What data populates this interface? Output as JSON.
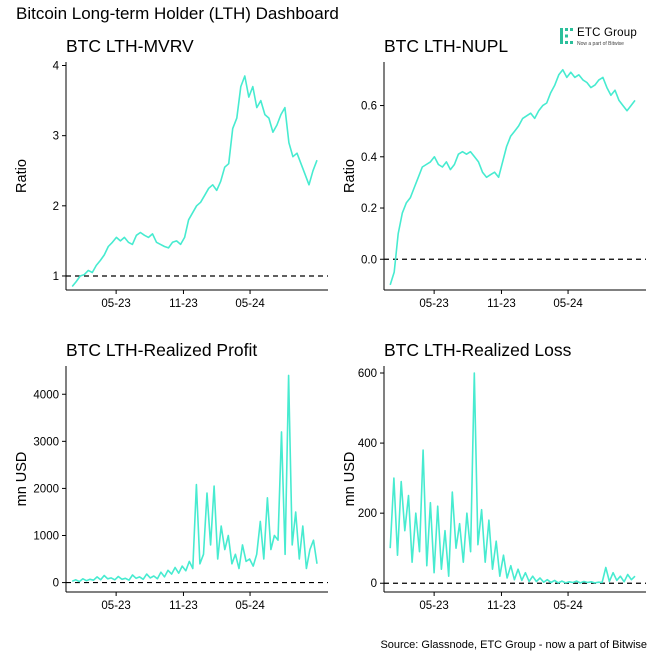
{
  "page": {
    "title": "Bitcoin Long-term Holder (LTH) Dashboard",
    "source": "Source: Glassnode, ETC Group - now a part of Bitwise",
    "logo": {
      "name": "ETC Group",
      "tagline": "Now a part of Bitwise",
      "color": "#2bbf9b"
    }
  },
  "line_color": "#47ebd0",
  "chart_data": [
    {
      "type": "line",
      "title": "BTC LTH-MVRV",
      "xlabel": "",
      "ylabel": "Ratio",
      "xlim": [
        "2022-12-15",
        "2024-11-30"
      ],
      "ylim": [
        0.8,
        4.05
      ],
      "yticks": [
        1,
        2,
        3,
        4
      ],
      "xticks": [
        "05-23",
        "11-23",
        "05-24"
      ],
      "reference_line": 1,
      "series": [
        {
          "x_start": "2023-01-01",
          "x_end": "2024-10-31",
          "values": [
            0.85,
            0.92,
            1.0,
            1.02,
            1.08,
            1.05,
            1.15,
            1.22,
            1.3,
            1.42,
            1.48,
            1.55,
            1.5,
            1.55,
            1.48,
            1.45,
            1.58,
            1.62,
            1.58,
            1.55,
            1.6,
            1.48,
            1.45,
            1.42,
            1.4,
            1.48,
            1.5,
            1.45,
            1.55,
            1.8,
            1.9,
            2.0,
            2.05,
            2.15,
            2.25,
            2.3,
            2.22,
            2.35,
            2.55,
            2.6,
            3.1,
            3.25,
            3.7,
            3.85,
            3.55,
            3.7,
            3.4,
            3.5,
            3.3,
            3.25,
            3.05,
            3.15,
            3.3,
            3.4,
            2.9,
            2.7,
            2.75,
            2.6,
            2.45,
            2.3,
            2.5,
            2.65
          ]
        }
      ]
    },
    {
      "type": "line",
      "title": "BTC LTH-NUPL",
      "xlabel": "",
      "ylabel": "Ratio",
      "xlim": [
        "2022-12-15",
        "2024-11-30"
      ],
      "ylim": [
        -0.12,
        0.77
      ],
      "yticks": [
        0.0,
        0.2,
        0.4,
        0.6
      ],
      "xticks": [
        "05-23",
        "11-23",
        "05-24"
      ],
      "reference_line": 0,
      "series": [
        {
          "x_start": "2023-01-01",
          "x_end": "2024-10-31",
          "values": [
            -0.1,
            -0.05,
            0.1,
            0.18,
            0.22,
            0.24,
            0.28,
            0.32,
            0.36,
            0.37,
            0.38,
            0.4,
            0.37,
            0.36,
            0.38,
            0.35,
            0.37,
            0.41,
            0.42,
            0.41,
            0.42,
            0.4,
            0.38,
            0.34,
            0.32,
            0.33,
            0.34,
            0.32,
            0.38,
            0.44,
            0.48,
            0.5,
            0.52,
            0.55,
            0.56,
            0.57,
            0.55,
            0.58,
            0.6,
            0.61,
            0.65,
            0.68,
            0.72,
            0.74,
            0.71,
            0.73,
            0.71,
            0.72,
            0.7,
            0.69,
            0.67,
            0.68,
            0.7,
            0.71,
            0.67,
            0.64,
            0.66,
            0.62,
            0.6,
            0.58,
            0.6,
            0.62
          ]
        }
      ]
    },
    {
      "type": "line",
      "title": "BTC LTH-Realized Profit",
      "xlabel": "",
      "ylabel": "mn USD",
      "xlim": [
        "2022-12-15",
        "2024-11-30"
      ],
      "ylim": [
        -200,
        4600
      ],
      "yticks": [
        0,
        1000,
        2000,
        3000,
        4000
      ],
      "xticks": [
        "05-23",
        "11-23",
        "05-24"
      ],
      "reference_line": 0,
      "series": [
        {
          "x_start": "2023-01-01",
          "x_end": "2024-10-31",
          "values": [
            30,
            60,
            20,
            80,
            40,
            70,
            50,
            120,
            60,
            150,
            80,
            100,
            60,
            130,
            70,
            90,
            50,
            160,
            90,
            120,
            70,
            180,
            100,
            140,
            80,
            220,
            120,
            260,
            180,
            320,
            200,
            350,
            250,
            450,
            300,
            2080,
            400,
            600,
            1900,
            800,
            2050,
            500,
            1200,
            700,
            1000,
            400,
            600,
            300,
            800,
            450,
            500,
            350,
            600,
            1300,
            500,
            1800,
            700,
            1000,
            900,
            3200,
            600,
            4400,
            800,
            1500,
            500,
            1200,
            300,
            700,
            900,
            400
          ]
        }
      ]
    },
    {
      "type": "line",
      "title": "BTC LTH-Realized Loss",
      "xlabel": "",
      "ylabel": "mn USD",
      "xlim": [
        "2022-12-15",
        "2024-11-30"
      ],
      "ylim": [
        -25,
        620
      ],
      "yticks": [
        0,
        200,
        400,
        600
      ],
      "xticks": [
        "05-23",
        "11-23",
        "05-24"
      ],
      "reference_line": 0,
      "series": [
        {
          "x_start": "2023-01-01",
          "x_end": "2024-10-31",
          "values": [
            100,
            300,
            80,
            290,
            150,
            250,
            60,
            200,
            90,
            380,
            50,
            230,
            30,
            220,
            40,
            150,
            20,
            260,
            100,
            170,
            60,
            200,
            90,
            600,
            110,
            210,
            60,
            180,
            40,
            120,
            20,
            80,
            15,
            50,
            10,
            40,
            8,
            30,
            5,
            20,
            5,
            15,
            3,
            10,
            2,
            8,
            1,
            6,
            1,
            4,
            2,
            6,
            1,
            5,
            2,
            4,
            1,
            3,
            2,
            45,
            5,
            30,
            8,
            20,
            4,
            25,
            10,
            20
          ]
        }
      ]
    }
  ]
}
